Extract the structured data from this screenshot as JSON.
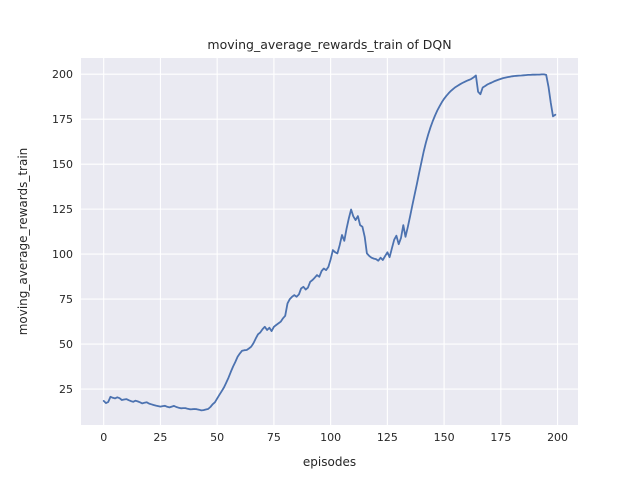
{
  "colors": {
    "line": "#4C72B0",
    "axes_background": "#EAEAF2",
    "grid": "#FFFFFF",
    "figure_background": "#FFFFFF",
    "text": "#262626"
  },
  "chart_data": {
    "type": "line",
    "title": "moving_average_rewards_train of DQN",
    "xlabel": "episodes",
    "ylabel": "moving_average_rewards_train",
    "x_ticks": [
      0,
      25,
      50,
      75,
      100,
      125,
      150,
      175,
      200
    ],
    "y_ticks": [
      25,
      50,
      75,
      100,
      125,
      150,
      175,
      200
    ],
    "xlim": [
      -10,
      209
    ],
    "ylim": [
      5,
      209
    ],
    "grid": true,
    "legend": false,
    "series": [
      {
        "name": "moving_average_rewards_train",
        "x_start": 0,
        "x_step": 1,
        "values": [
          18.4,
          17.2,
          17.8,
          20.7,
          20.1,
          19.8,
          20.4,
          19.9,
          18.9,
          19.2,
          19.4,
          18.8,
          18.3,
          17.9,
          18.5,
          18.1,
          17.6,
          17.0,
          17.4,
          17.6,
          16.9,
          16.5,
          16.1,
          15.8,
          15.5,
          15.2,
          15.5,
          15.7,
          15.1,
          14.8,
          15.2,
          15.6,
          15.0,
          14.6,
          14.3,
          14.4,
          14.4,
          14.0,
          13.7,
          13.8,
          13.9,
          13.8,
          13.5,
          13.1,
          13.3,
          13.6,
          13.9,
          15.0,
          16.5,
          17.6,
          19.8,
          21.8,
          23.8,
          25.9,
          28.5,
          31.3,
          34.5,
          37.5,
          40.0,
          42.9,
          44.8,
          46.3,
          46.6,
          46.7,
          47.5,
          48.5,
          50.5,
          53.0,
          55.4,
          56.5,
          58.3,
          59.6,
          57.8,
          59.1,
          57.2,
          59.6,
          60.6,
          61.5,
          62.4,
          64.3,
          65.7,
          72.6,
          75.0,
          76.3,
          77.2,
          76.3,
          77.6,
          80.9,
          81.8,
          80.3,
          81.3,
          84.6,
          85.6,
          86.9,
          88.3,
          87.4,
          90.6,
          92.0,
          91.1,
          92.9,
          97.0,
          102.2,
          101.0,
          100.4,
          105.0,
          110.6,
          107.4,
          114.0,
          119.8,
          124.8,
          121.0,
          118.9,
          121.1,
          116.1,
          115.2,
          109.6,
          100.4,
          99.0,
          98.0,
          97.5,
          97.2,
          96.3,
          98.0,
          96.7,
          98.9,
          101.0,
          98.3,
          103.2,
          108.0,
          110.2,
          105.5,
          109.0,
          116.1,
          109.6,
          115.0,
          121.0,
          127.0,
          133.0,
          139.0,
          145.0,
          151.0,
          157.0,
          162.0,
          166.5,
          170.5,
          174.0,
          177.0,
          179.8,
          182.2,
          184.4,
          186.3,
          188.0,
          189.4,
          190.7,
          191.8,
          192.8,
          193.6,
          194.4,
          195.1,
          195.7,
          196.3,
          196.8,
          197.4,
          198.2,
          199.3,
          190.2,
          188.9,
          192.6,
          193.4,
          194.2,
          194.8,
          195.4,
          196.0,
          196.5,
          197.0,
          197.4,
          197.8,
          198.1,
          198.4,
          198.6,
          198.8,
          199.0,
          199.1,
          199.2,
          199.3,
          199.4,
          199.5,
          199.6,
          199.6,
          199.7,
          199.7,
          199.8,
          199.8,
          199.9,
          199.9,
          199.6,
          193.0,
          184.0,
          176.6,
          177.5
        ]
      }
    ]
  }
}
